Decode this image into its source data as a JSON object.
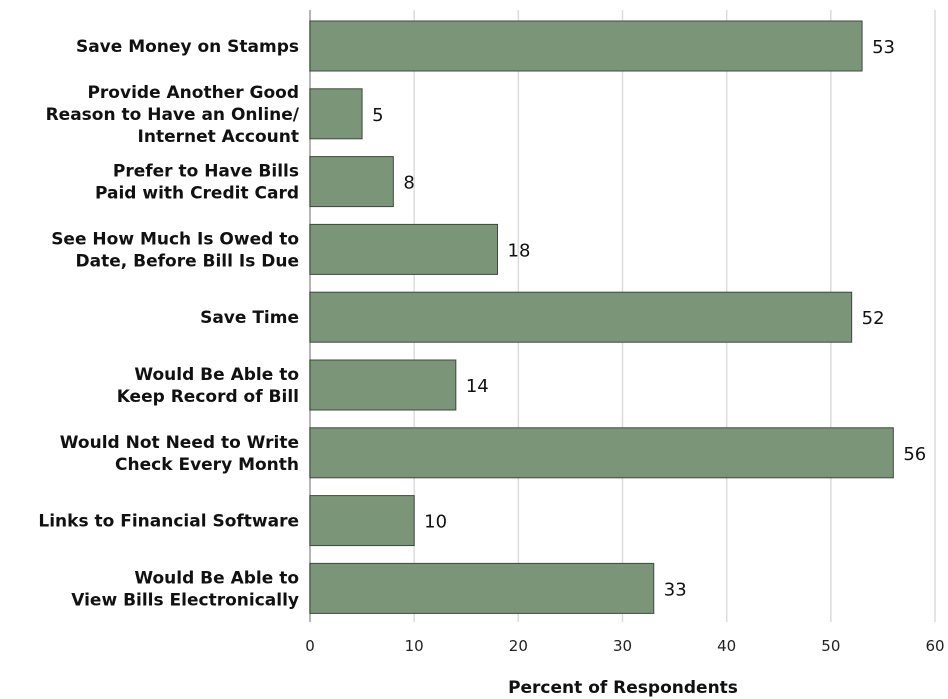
{
  "chart_data": {
    "type": "bar",
    "orientation": "horizontal",
    "title": "",
    "xlabel": "Percent of Respondents",
    "ylabel": "",
    "xlim": [
      0,
      60
    ],
    "xticks": [
      0,
      10,
      20,
      30,
      40,
      50,
      60
    ],
    "grid": true,
    "bar_color": "#7a9577",
    "bar_edge_color": "#3d4a3c",
    "categories": [
      [
        "Save Money on Stamps"
      ],
      [
        "Provide Another Good",
        "Reason to Have an Online/",
        "Internet Account"
      ],
      [
        "Prefer to Have Bills",
        "Paid with Credit Card"
      ],
      [
        "See How Much Is Owed to",
        "Date, Before Bill Is Due"
      ],
      [
        "Save Time"
      ],
      [
        "Would Be Able to",
        "Keep Record of Bill"
      ],
      [
        "Would Not Need to Write",
        "Check Every Month"
      ],
      [
        "Links to Financial Software"
      ],
      [
        "Would Be Able to",
        "View Bills Electronically"
      ]
    ],
    "values": [
      53,
      5,
      8,
      18,
      52,
      14,
      56,
      10,
      33
    ],
    "value_labels": [
      "53",
      "5",
      "8",
      "18",
      "52",
      "14",
      "56",
      "10",
      "33"
    ]
  }
}
